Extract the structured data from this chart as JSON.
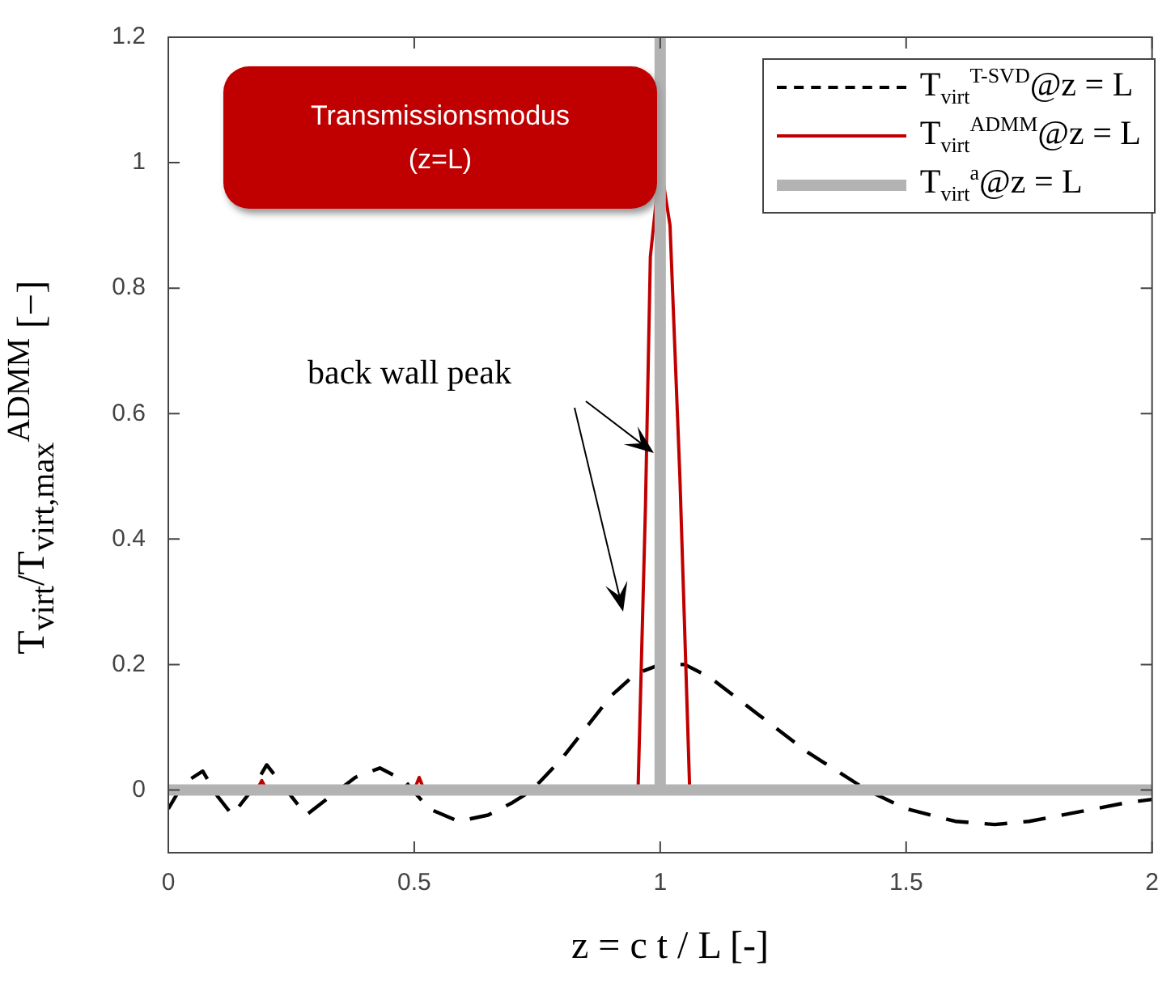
{
  "chart_data": {
    "type": "line",
    "xlabel": "z = c t / L [-]",
    "ylabel": "T$_{virt}$/T$_{virt,max}$$^{ADMM}$ [−]",
    "xlim": [
      0,
      2
    ],
    "xticks": [
      0,
      0.5,
      1,
      1.5,
      2
    ],
    "ylim": [
      -0.1,
      1.2
    ],
    "yticks": [
      0,
      0.2,
      0.4,
      0.6,
      0.8,
      1,
      1.2
    ],
    "grid": false,
    "legend": "top right",
    "marker": "none",
    "annotations": [
      "Transmissionsmodus\n(z=L)",
      "back wall peak"
    ],
    "series": [
      {
        "name": "T$_{virt}$$^{T-SVD}$@z = L",
        "color": "#000000",
        "line_style": "dashed",
        "x": [
          0,
          0.03,
          0.07,
          0.1,
          0.13,
          0.17,
          0.2,
          0.24,
          0.28,
          0.33,
          0.38,
          0.43,
          0.48,
          0.53,
          0.59,
          0.65,
          0.7,
          0.74,
          0.8,
          0.85,
          0.9,
          0.95,
          1.0,
          1.05,
          1.1,
          1.2,
          1.3,
          1.42,
          1.5,
          1.6,
          1.68,
          1.75,
          1.85,
          1.95,
          2
        ],
        "values": [
          -0.03,
          0.01,
          0.03,
          -0.01,
          -0.04,
          0.0,
          0.04,
          0.0,
          -0.04,
          -0.01,
          0.02,
          0.035,
          0.015,
          -0.03,
          -0.05,
          -0.04,
          -0.02,
          0.0,
          0.05,
          0.1,
          0.15,
          0.185,
          0.2,
          0.2,
          0.18,
          0.12,
          0.06,
          0.0,
          -0.03,
          -0.05,
          -0.055,
          -0.05,
          -0.035,
          -0.02,
          -0.015
        ]
      },
      {
        "name": "T$_{virt}$$^{ADMM}$@z = L",
        "color": "#c00000",
        "line_style": "solid",
        "x": [
          0,
          0.18,
          0.19,
          0.2,
          0.5,
          0.51,
          0.52,
          0.955,
          0.97,
          0.98,
          1.0,
          1.02,
          1.04,
          1.06,
          2
        ],
        "values": [
          0,
          0,
          0.015,
          0,
          0,
          0.02,
          0,
          0,
          0.45,
          0.85,
          1.0,
          0.9,
          0.5,
          0,
          0
        ]
      },
      {
        "name": "T$_{virt}$$^{a}$@z = L",
        "color": "#b3b3b3",
        "line_style": "solid",
        "x": [
          0,
          1,
          1,
          1,
          2
        ],
        "values": [
          0,
          0,
          1.2,
          0,
          0
        ]
      }
    ]
  }
}
